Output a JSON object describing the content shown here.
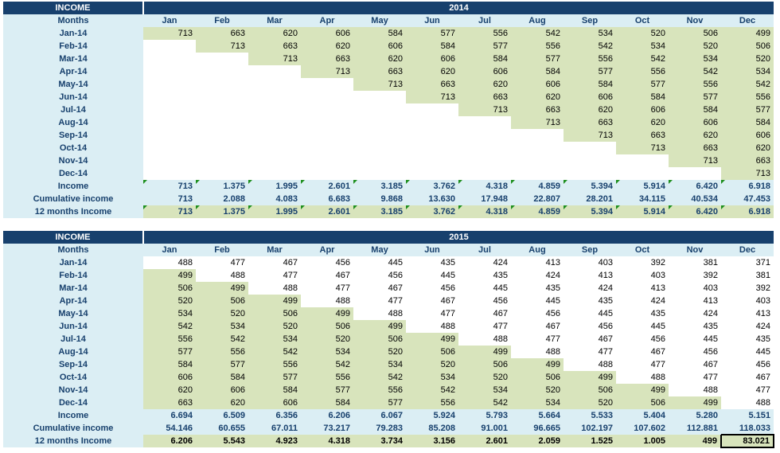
{
  "colors": {
    "header_bg": "#17406d",
    "header_text": "#ffffff",
    "label_bg": "#dbeef4",
    "green_fill": "#d8e4bc",
    "flag": "#1e8f1e"
  },
  "tables": [
    {
      "title": "INCOME",
      "year": "2014",
      "months_label": "Months",
      "months": [
        "Jan",
        "Feb",
        "Mar",
        "Apr",
        "May",
        "Jun",
        "Jul",
        "Aug",
        "Sep",
        "Oct",
        "Nov",
        "Dec"
      ],
      "rows": [
        {
          "label": "Jan-14",
          "values": [
            "713",
            "663",
            "620",
            "606",
            "584",
            "577",
            "556",
            "542",
            "534",
            "520",
            "506",
            "499"
          ]
        },
        {
          "label": "Feb-14",
          "values": [
            "",
            "713",
            "663",
            "620",
            "606",
            "584",
            "577",
            "556",
            "542",
            "534",
            "520",
            "506"
          ]
        },
        {
          "label": "Mar-14",
          "values": [
            "",
            "",
            "713",
            "663",
            "620",
            "606",
            "584",
            "577",
            "556",
            "542",
            "534",
            "520"
          ]
        },
        {
          "label": "Apr-14",
          "values": [
            "",
            "",
            "",
            "713",
            "663",
            "620",
            "606",
            "584",
            "577",
            "556",
            "542",
            "534"
          ]
        },
        {
          "label": "May-14",
          "values": [
            "",
            "",
            "",
            "",
            "713",
            "663",
            "620",
            "606",
            "584",
            "577",
            "556",
            "542"
          ]
        },
        {
          "label": "Jun-14",
          "values": [
            "",
            "",
            "",
            "",
            "",
            "713",
            "663",
            "620",
            "606",
            "584",
            "577",
            "556"
          ]
        },
        {
          "label": "Jul-14",
          "values": [
            "",
            "",
            "",
            "",
            "",
            "",
            "713",
            "663",
            "620",
            "606",
            "584",
            "577"
          ]
        },
        {
          "label": "Aug-14",
          "values": [
            "",
            "",
            "",
            "",
            "",
            "",
            "",
            "713",
            "663",
            "620",
            "606",
            "584"
          ]
        },
        {
          "label": "Sep-14",
          "values": [
            "",
            "",
            "",
            "",
            "",
            "",
            "",
            "",
            "713",
            "663",
            "620",
            "606"
          ]
        },
        {
          "label": "Oct-14",
          "values": [
            "",
            "",
            "",
            "",
            "",
            "",
            "",
            "",
            "",
            "713",
            "663",
            "620"
          ]
        },
        {
          "label": "Nov-14",
          "values": [
            "",
            "",
            "",
            "",
            "",
            "",
            "",
            "",
            "",
            "",
            "713",
            "663"
          ]
        },
        {
          "label": "Dec-14",
          "values": [
            "",
            "",
            "",
            "",
            "",
            "",
            "",
            "",
            "",
            "",
            "",
            "713"
          ]
        }
      ],
      "totals": [
        {
          "label": "Income",
          "values": [
            "713",
            "1.375",
            "1.995",
            "2.601",
            "3.185",
            "3.762",
            "4.318",
            "4.859",
            "5.394",
            "5.914",
            "6.420",
            "6.918"
          ]
        },
        {
          "label": "Cumulative income",
          "values": [
            "713",
            "2.088",
            "4.083",
            "6.683",
            "9.868",
            "13.630",
            "17.948",
            "22.807",
            "28.201",
            "34.115",
            "40.534",
            "47.453"
          ]
        },
        {
          "label": "12 months Income",
          "values": [
            "713",
            "1.375",
            "1.995",
            "2.601",
            "3.185",
            "3.762",
            "4.318",
            "4.859",
            "5.394",
            "5.914",
            "6.420",
            "6.918"
          ]
        }
      ]
    },
    {
      "title": "INCOME",
      "year": "2015",
      "months_label": "Months",
      "months": [
        "Jan",
        "Feb",
        "Mar",
        "Apr",
        "May",
        "Jun",
        "Jul",
        "Aug",
        "Sep",
        "Oct",
        "Nov",
        "Dec"
      ],
      "rows": [
        {
          "label": "Jan-14",
          "values": [
            "488",
            "477",
            "467",
            "456",
            "445",
            "435",
            "424",
            "413",
            "403",
            "392",
            "381",
            "371"
          ]
        },
        {
          "label": "Feb-14",
          "values": [
            "499",
            "488",
            "477",
            "467",
            "456",
            "445",
            "435",
            "424",
            "413",
            "403",
            "392",
            "381"
          ]
        },
        {
          "label": "Mar-14",
          "values": [
            "506",
            "499",
            "488",
            "477",
            "467",
            "456",
            "445",
            "435",
            "424",
            "413",
            "403",
            "392"
          ]
        },
        {
          "label": "Apr-14",
          "values": [
            "520",
            "506",
            "499",
            "488",
            "477",
            "467",
            "456",
            "445",
            "435",
            "424",
            "413",
            "403"
          ]
        },
        {
          "label": "May-14",
          "values": [
            "534",
            "520",
            "506",
            "499",
            "488",
            "477",
            "467",
            "456",
            "445",
            "435",
            "424",
            "413"
          ]
        },
        {
          "label": "Jun-14",
          "values": [
            "542",
            "534",
            "520",
            "506",
            "499",
            "488",
            "477",
            "467",
            "456",
            "445",
            "435",
            "424"
          ]
        },
        {
          "label": "Jul-14",
          "values": [
            "556",
            "542",
            "534",
            "520",
            "506",
            "499",
            "488",
            "477",
            "467",
            "456",
            "445",
            "435"
          ]
        },
        {
          "label": "Aug-14",
          "values": [
            "577",
            "556",
            "542",
            "534",
            "520",
            "506",
            "499",
            "488",
            "477",
            "467",
            "456",
            "445"
          ]
        },
        {
          "label": "Sep-14",
          "values": [
            "584",
            "577",
            "556",
            "542",
            "534",
            "520",
            "506",
            "499",
            "488",
            "477",
            "467",
            "456"
          ]
        },
        {
          "label": "Oct-14",
          "values": [
            "606",
            "584",
            "577",
            "556",
            "542",
            "534",
            "520",
            "506",
            "499",
            "488",
            "477",
            "467"
          ]
        },
        {
          "label": "Nov-14",
          "values": [
            "620",
            "606",
            "584",
            "577",
            "556",
            "542",
            "534",
            "520",
            "506",
            "499",
            "488",
            "477"
          ]
        },
        {
          "label": "Dec-14",
          "values": [
            "663",
            "620",
            "606",
            "584",
            "577",
            "556",
            "542",
            "534",
            "520",
            "506",
            "499",
            "488"
          ]
        }
      ],
      "totals": [
        {
          "label": "Income",
          "values": [
            "6.694",
            "6.509",
            "6.356",
            "6.206",
            "6.067",
            "5.924",
            "5.793",
            "5.664",
            "5.533",
            "5.404",
            "5.280",
            "5.151"
          ]
        },
        {
          "label": "Cumulative income",
          "values": [
            "54.146",
            "60.655",
            "67.011",
            "73.217",
            "79.283",
            "85.208",
            "91.001",
            "96.665",
            "102.197",
            "107.602",
            "112.881",
            "118.033"
          ]
        },
        {
          "label": "12 months Income",
          "values": [
            "6.206",
            "5.543",
            "4.923",
            "4.318",
            "3.734",
            "3.156",
            "2.601",
            "2.059",
            "1.525",
            "1.005",
            "499",
            "83.021"
          ]
        }
      ]
    }
  ]
}
